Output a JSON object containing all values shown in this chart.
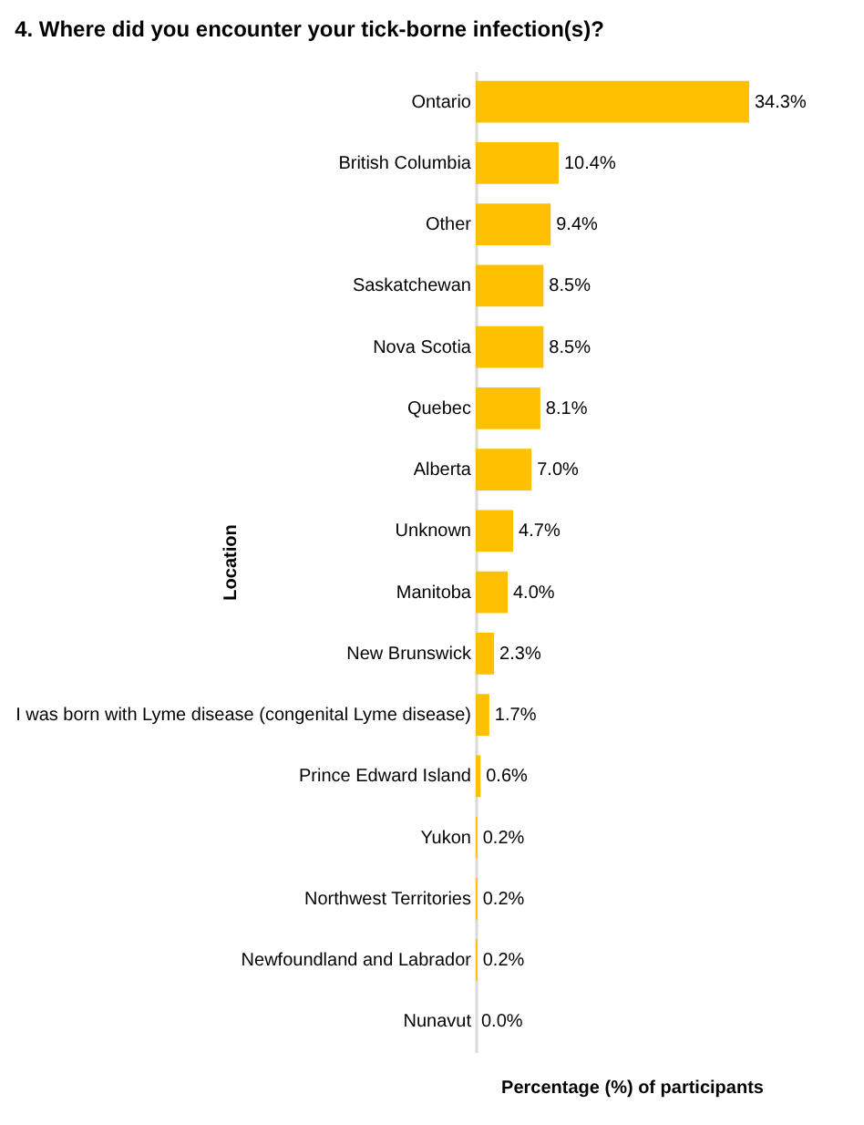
{
  "chart_data": {
    "type": "bar",
    "orientation": "horizontal",
    "title": "4. Where did you encounter your tick-borne infection(s)?",
    "xlabel": "Percentage (%) of participants",
    "ylabel": "Location",
    "categories": [
      "Ontario",
      "British Columbia",
      "Other",
      "Saskatchewan",
      "Nova Scotia",
      "Quebec",
      "Alberta",
      "Unknown",
      "Manitoba",
      "New Brunswick",
      "I was born with Lyme disease (congenital Lyme disease)",
      "Prince Edward Island",
      "Yukon",
      "Northwest Territories",
      "Newfoundland and Labrador",
      "Nunavut"
    ],
    "values": [
      34.3,
      10.4,
      9.4,
      8.5,
      8.5,
      8.1,
      7.0,
      4.7,
      4.0,
      2.3,
      1.7,
      0.6,
      0.2,
      0.2,
      0.2,
      0.0
    ],
    "value_labels": [
      "34.3%",
      "10.4%",
      "9.4%",
      "8.5%",
      "8.5%",
      "8.1%",
      "7.0%",
      "4.7%",
      "4.0%",
      "2.3%",
      "1.7%",
      "0.6%",
      "0.2%",
      "0.2%",
      "0.2%",
      "0.0%"
    ],
    "color": "#ffc000",
    "tick_labels": "y"
  }
}
